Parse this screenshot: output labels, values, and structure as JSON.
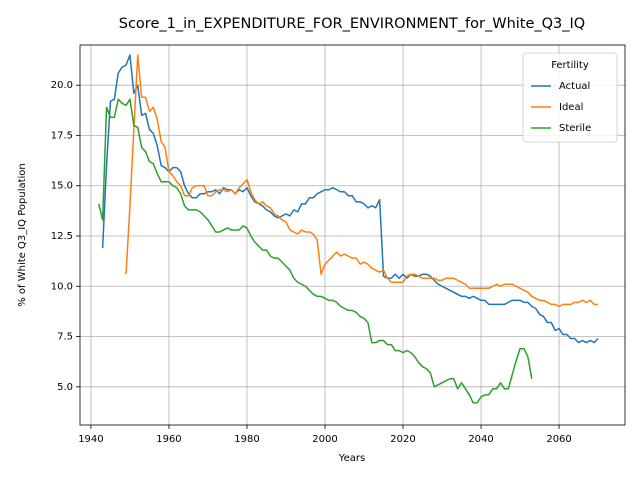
{
  "chart_data": {
    "type": "line",
    "title": "Score_1_in_EXPENDITURE_FOR_ENVIRONMENT_for_White_Q3_IQ",
    "x_label": "Years",
    "y_label": "% of White Q3_IQ Population",
    "legend_title": "Fertility",
    "legend_loc": "upper right",
    "grid": true,
    "xlim": [
      1937.2,
      2076.9
    ],
    "ylim": [
      3.1,
      22.0
    ],
    "xticks": [
      1940,
      1960,
      1980,
      2000,
      2020,
      2040,
      2060
    ],
    "yticks": [
      {
        "value": 5,
        "label": "5.0"
      },
      {
        "value": 7.5,
        "label": "7.5"
      },
      {
        "value": 10,
        "label": "10.0"
      },
      {
        "value": 12.5,
        "label": "12.5"
      },
      {
        "value": 15,
        "label": "15.0"
      },
      {
        "value": 17.5,
        "label": "17.5"
      },
      {
        "value": 20,
        "label": "20.0"
      }
    ],
    "x": [
      1942,
      1943,
      1944,
      1945,
      1946,
      1947,
      1948,
      1949,
      1950,
      1951,
      1952,
      1953,
      1954,
      1955,
      1956,
      1957,
      1958,
      1959,
      1960,
      1961,
      1962,
      1963,
      1964,
      1965,
      1966,
      1967,
      1968,
      1969,
      1970,
      1971,
      1972,
      1973,
      1974,
      1975,
      1976,
      1977,
      1978,
      1979,
      1980,
      1981,
      1982,
      1983,
      1984,
      1985,
      1986,
      1987,
      1988,
      1989,
      1990,
      1991,
      1992,
      1993,
      1994,
      1995,
      1996,
      1997,
      1998,
      1999,
      2000,
      2001,
      2002,
      2003,
      2004,
      2005,
      2006,
      2007,
      2008,
      2009,
      2010,
      2011,
      2012,
      2013,
      2014,
      2015,
      2016,
      2017,
      2018,
      2019,
      2020,
      2021,
      2022,
      2023,
      2024,
      2025,
      2026,
      2027,
      2028,
      2029,
      2030,
      2031,
      2032,
      2033,
      2034,
      2035,
      2036,
      2037,
      2038,
      2039,
      2040,
      2041,
      2042,
      2043,
      2044,
      2045,
      2046,
      2047,
      2048,
      2049,
      2050,
      2051,
      2052,
      2053,
      2054,
      2055,
      2056,
      2057,
      2058,
      2059,
      2060,
      2061,
      2062,
      2063,
      2064,
      2065,
      2066,
      2067,
      2068,
      2069,
      2070
    ],
    "series": [
      {
        "name": "Actual",
        "color": "#1f77b4",
        "values": [
          null,
          11.9,
          16.0,
          19.2,
          19.3,
          20.6,
          20.9,
          21.0,
          21.5,
          19.6,
          20.0,
          18.5,
          18.6,
          17.8,
          17.6,
          17.0,
          16.0,
          15.9,
          15.7,
          15.9,
          15.9,
          15.7,
          15.0,
          14.6,
          14.4,
          14.4,
          14.6,
          14.6,
          14.7,
          14.7,
          14.8,
          14.6,
          14.9,
          14.8,
          14.8,
          14.6,
          14.8,
          14.7,
          14.9,
          14.5,
          14.2,
          14.1,
          14.0,
          13.8,
          13.7,
          13.5,
          13.4,
          13.5,
          13.6,
          13.5,
          13.8,
          13.7,
          14.1,
          14.1,
          14.4,
          14.4,
          14.6,
          14.7,
          14.8,
          14.8,
          14.9,
          14.8,
          14.7,
          14.7,
          14.5,
          14.5,
          14.2,
          14.2,
          14.1,
          13.9,
          14.0,
          13.9,
          14.3,
          10.5,
          10.4,
          10.4,
          10.6,
          10.4,
          10.6,
          10.4,
          10.6,
          10.5,
          10.5,
          10.6,
          10.6,
          10.5,
          10.3,
          10.1,
          10.0,
          9.9,
          9.8,
          9.7,
          9.6,
          9.5,
          9.5,
          9.4,
          9.5,
          9.4,
          9.3,
          9.3,
          9.1,
          9.1,
          9.1,
          9.1,
          9.1,
          9.2,
          9.3,
          9.3,
          9.3,
          9.2,
          9.2,
          9.0,
          8.9,
          8.6,
          8.5,
          8.2,
          8.2,
          7.8,
          7.9,
          7.6,
          7.6,
          7.4,
          7.4,
          7.2,
          7.3,
          7.2,
          7.3,
          7.2,
          7.4
        ]
      },
      {
        "name": "Ideal",
        "color": "#ff7f0e",
        "values": [
          null,
          null,
          null,
          null,
          null,
          null,
          null,
          10.6,
          14.0,
          17.8,
          21.5,
          19.4,
          19.4,
          18.7,
          18.9,
          18.3,
          17.2,
          16.9,
          15.7,
          15.5,
          15.2,
          15.0,
          14.5,
          14.5,
          14.9,
          15.0,
          15.0,
          15.0,
          14.5,
          14.5,
          14.7,
          14.8,
          14.8,
          14.7,
          14.8,
          14.6,
          14.9,
          15.1,
          15.3,
          14.7,
          14.3,
          14.1,
          14.2,
          14.0,
          13.9,
          13.6,
          13.5,
          13.3,
          13.2,
          12.8,
          12.7,
          12.6,
          12.8,
          12.7,
          12.7,
          12.6,
          12.3,
          10.6,
          11.1,
          11.3,
          11.5,
          11.7,
          11.5,
          11.6,
          11.5,
          11.4,
          11.4,
          11.1,
          11.2,
          11.1,
          10.9,
          10.8,
          10.7,
          10.8,
          10.4,
          10.2,
          10.2,
          10.2,
          10.2,
          10.5,
          10.6,
          10.6,
          10.5,
          10.4,
          10.4,
          10.4,
          10.4,
          10.3,
          10.3,
          10.4,
          10.4,
          10.4,
          10.3,
          10.2,
          10.1,
          9.9,
          9.9,
          9.9,
          9.9,
          9.9,
          9.9,
          10.0,
          10.1,
          10.0,
          10.1,
          10.1,
          10.1,
          10.0,
          9.9,
          9.8,
          9.7,
          9.5,
          9.4,
          9.3,
          9.3,
          9.2,
          9.1,
          9.1,
          9.0,
          9.1,
          9.1,
          9.1,
          9.2,
          9.2,
          9.3,
          9.2,
          9.3,
          9.1,
          9.1
        ]
      },
      {
        "name": "Sterile",
        "color": "#2ca02c",
        "values": [
          14.1,
          13.3,
          18.9,
          18.4,
          18.4,
          19.3,
          19.1,
          19.0,
          19.3,
          18.0,
          17.9,
          16.9,
          16.7,
          16.2,
          16.1,
          15.6,
          15.2,
          15.2,
          15.2,
          15.0,
          14.9,
          14.6,
          14.0,
          13.8,
          13.8,
          13.8,
          13.7,
          13.5,
          13.3,
          13.0,
          12.7,
          12.7,
          12.8,
          12.9,
          12.8,
          12.8,
          12.8,
          13.0,
          12.9,
          12.5,
          12.2,
          12.0,
          11.8,
          11.8,
          11.5,
          11.4,
          11.4,
          11.2,
          11.0,
          10.8,
          10.4,
          10.2,
          10.1,
          10.0,
          9.8,
          9.6,
          9.5,
          9.5,
          9.4,
          9.3,
          9.3,
          9.2,
          9.0,
          8.9,
          8.8,
          8.8,
          8.7,
          8.5,
          8.4,
          8.2,
          7.2,
          7.2,
          7.3,
          7.3,
          7.1,
          7.1,
          6.8,
          6.8,
          6.7,
          6.8,
          6.7,
          6.5,
          6.2,
          6.0,
          5.9,
          5.7,
          5.0,
          5.1,
          5.2,
          5.3,
          5.4,
          5.4,
          4.9,
          5.2,
          4.9,
          4.6,
          4.2,
          4.2,
          4.5,
          4.6,
          4.6,
          4.9,
          4.9,
          5.2,
          4.9,
          4.9,
          5.6,
          6.3,
          6.9,
          6.9,
          6.5,
          5.4,
          null,
          null,
          null,
          null,
          null,
          null,
          null,
          null,
          null,
          null,
          null,
          null,
          null,
          null,
          null,
          null,
          null
        ]
      }
    ]
  }
}
